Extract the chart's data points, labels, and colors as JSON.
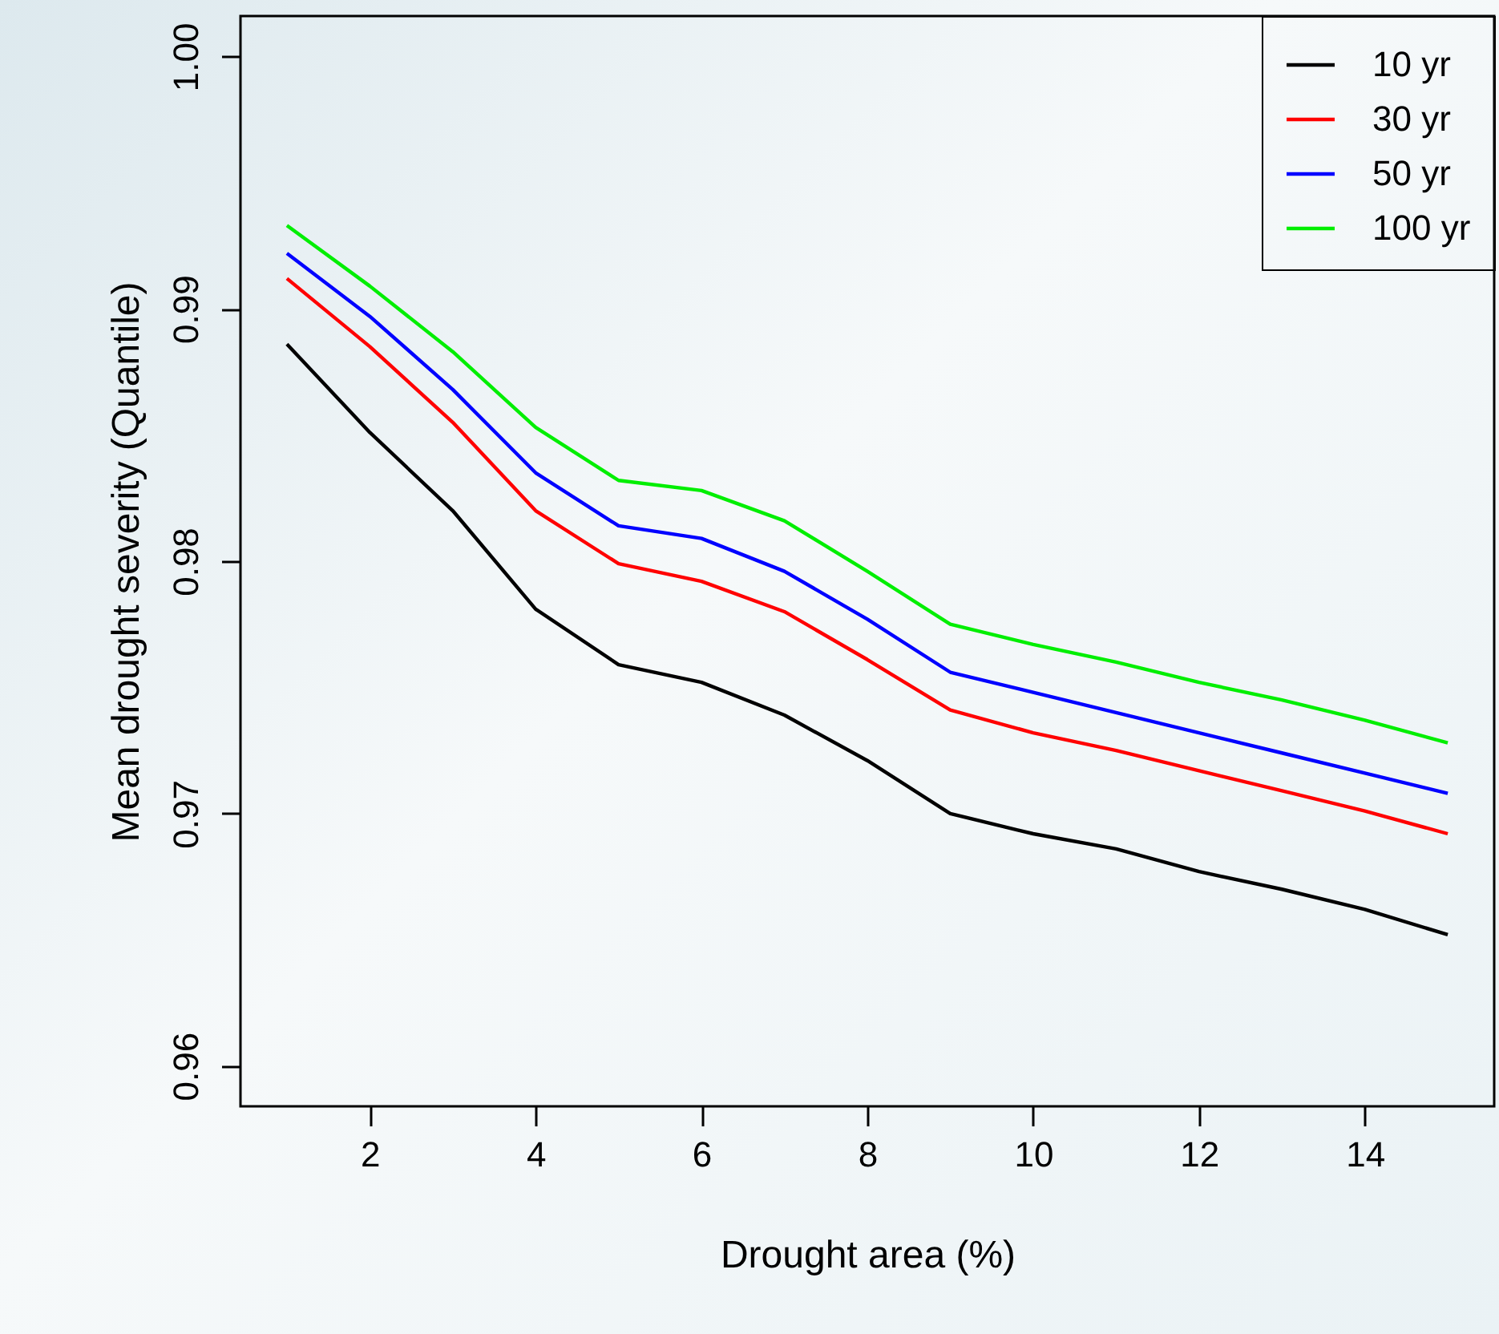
{
  "chart_data": {
    "type": "line",
    "xlabel": "Drought area (%)",
    "ylabel": "Mean drought severity (Quantile)",
    "x": [
      1,
      2,
      3,
      4,
      5,
      6,
      7,
      8,
      9,
      10,
      11,
      12,
      13,
      14,
      15
    ],
    "series": [
      {
        "name": "10 yr",
        "color": "#000000",
        "values": [
          0.9886,
          0.9851,
          0.982,
          0.9781,
          0.9759,
          0.9752,
          0.9739,
          0.9721,
          0.97,
          0.9692,
          0.9686,
          0.9677,
          0.967,
          0.9662,
          0.9652
        ]
      },
      {
        "name": "30 yr",
        "color": "#ff0000",
        "values": [
          0.9912,
          0.9885,
          0.9855,
          0.982,
          0.9799,
          0.9792,
          0.978,
          0.9761,
          0.9741,
          0.9732,
          0.9725,
          0.9717,
          0.9709,
          0.9701,
          0.9692
        ]
      },
      {
        "name": "50 yr",
        "color": "#0000ff",
        "values": [
          0.9922,
          0.9897,
          0.9868,
          0.9835,
          0.9814,
          0.9809,
          0.9796,
          0.9777,
          0.9756,
          0.9748,
          0.974,
          0.9732,
          0.9724,
          0.9716,
          0.9708
        ]
      },
      {
        "name": "100 yr",
        "color": "#00ee00",
        "values": [
          0.9933,
          0.9909,
          0.9883,
          0.9853,
          0.9832,
          0.9828,
          0.9816,
          0.9796,
          0.9775,
          0.9767,
          0.976,
          0.9752,
          0.9745,
          0.9737,
          0.9728
        ]
      }
    ],
    "xlim": [
      0.44,
      15.56
    ],
    "xticks": [
      2,
      4,
      6,
      8,
      10,
      12,
      14
    ],
    "ylim": [
      0.9584,
      1.0016
    ],
    "yticks": [
      0.96,
      0.97,
      0.98,
      0.99,
      {
        "value": 1,
        "label": "1.00"
      }
    ],
    "grid": false,
    "legend": "top right",
    "line_style": "solid",
    "marker": "none"
  }
}
